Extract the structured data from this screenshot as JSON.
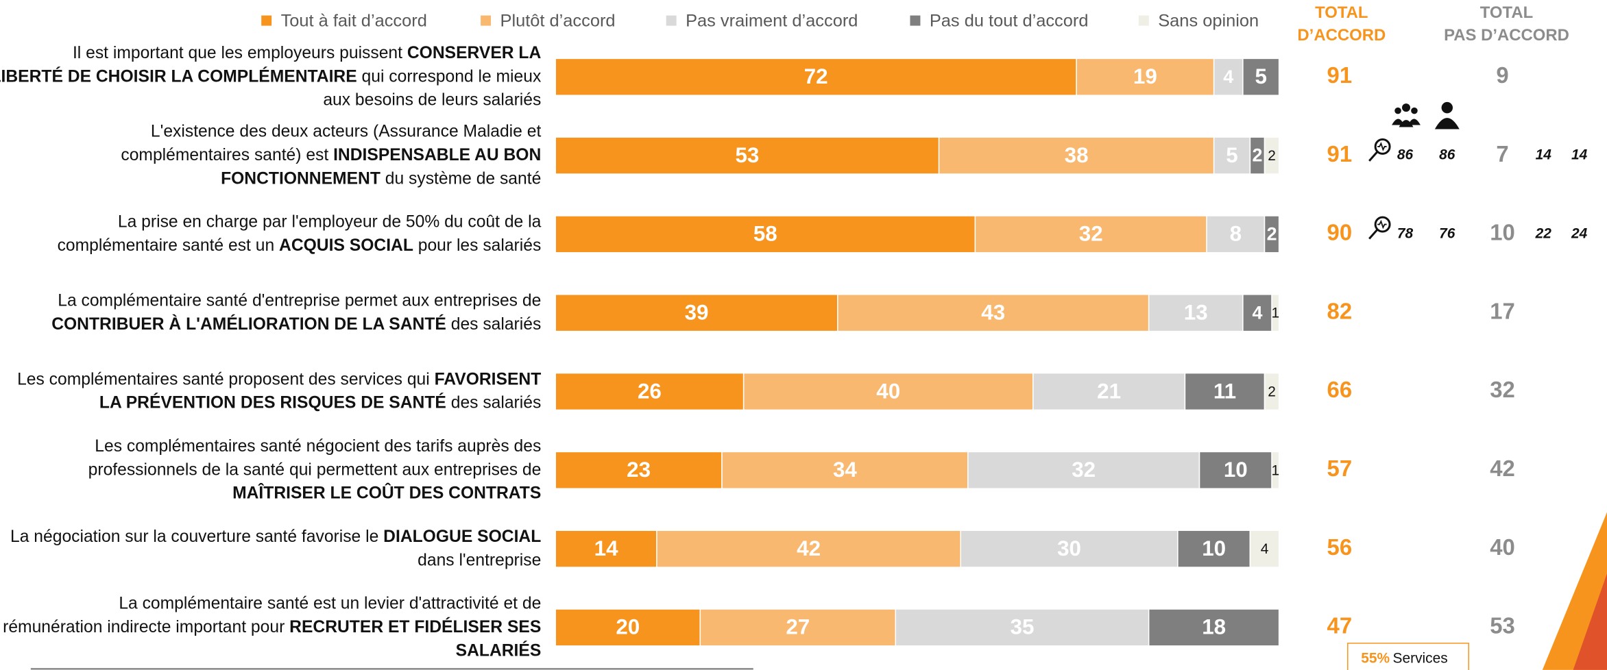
{
  "chart_data": {
    "type": "stacked-barh",
    "series": [
      {
        "name": "Tout à fait d’accord",
        "color": "#f7941d",
        "label_color": "#ffffff",
        "values": [
          72,
          53,
          58,
          39,
          26,
          23,
          14,
          20
        ]
      },
      {
        "name": "Plutôt d’accord",
        "color": "#f9b870",
        "label_color": "#ffffff",
        "values": [
          19,
          38,
          32,
          43,
          40,
          34,
          42,
          27
        ]
      },
      {
        "name": "Pas vraiment d’accord",
        "color": "#d9d9d9",
        "label_color": "#ffffff",
        "values": [
          4,
          5,
          8,
          13,
          21,
          32,
          30,
          35
        ]
      },
      {
        "name": "Pas du tout d’accord",
        "color": "#7f7f7f",
        "label_color": "#ffffff",
        "values": [
          5,
          2,
          2,
          4,
          11,
          10,
          10,
          18
        ]
      },
      {
        "name": "Sans opinion",
        "color": "#efefe6",
        "label_color": "#111111",
        "values": [
          null,
          2,
          null,
          1,
          2,
          1,
          4,
          null
        ]
      }
    ],
    "categories": [
      [
        [
          {
            "text": "Il est important que les employeurs puissent ",
            "bold": false
          },
          {
            "text": "CONSERVER LA",
            "bold": true
          }
        ],
        [
          {
            "text": "LIBERTÉ DE CHOISIR LA COMPLÉMENTAIRE",
            "bold": true
          },
          {
            "text": " qui correspond le mieux",
            "bold": false
          }
        ],
        [
          {
            "text": "aux besoins de leurs salariés",
            "bold": false
          }
        ]
      ],
      [
        [
          {
            "text": "L'existence des deux acteurs (Assurance Maladie et",
            "bold": false
          }
        ],
        [
          {
            "text": "complémentaires santé) est ",
            "bold": false
          },
          {
            "text": "INDISPENSABLE AU BON",
            "bold": true
          }
        ],
        [
          {
            "text": "FONCTIONNEMENT",
            "bold": true
          },
          {
            "text": " du système de santé",
            "bold": false
          }
        ]
      ],
      [
        [
          {
            "text": "La prise en charge par l'employeur de 50% du coût de la",
            "bold": false
          }
        ],
        [
          {
            "text": "complémentaire santé est un ",
            "bold": false
          },
          {
            "text": "ACQUIS SOCIAL",
            "bold": true
          },
          {
            "text": " pour les salariés",
            "bold": false
          }
        ]
      ],
      [
        [
          {
            "text": "La complémentaire santé d'entreprise permet aux entreprises de",
            "bold": false
          }
        ],
        [
          {
            "text": "CONTRIBUER À L'AMÉLIORATION DE LA SANTÉ",
            "bold": true
          },
          {
            "text": " des salariés",
            "bold": false
          }
        ]
      ],
      [
        [
          {
            "text": "Les complémentaires santé proposent des services qui ",
            "bold": false
          },
          {
            "text": "FAVORISENT",
            "bold": true
          }
        ],
        [
          {
            "text": "LA PRÉVENTION DES RISQUES DE SANTÉ",
            "bold": true
          },
          {
            "text": " des salariés",
            "bold": false
          }
        ]
      ],
      [
        [
          {
            "text": "Les complémentaires santé négocient des tarifs auprès des",
            "bold": false
          }
        ],
        [
          {
            "text": "professionnels de la santé qui permettent aux entreprises de",
            "bold": false
          }
        ],
        [
          {
            "text": "MAÎTRISER LE COÛT DES CONTRATS",
            "bold": true
          }
        ]
      ],
      [
        [
          {
            "text": "La négociation sur la couverture santé favorise le ",
            "bold": false
          },
          {
            "text": "DIALOGUE SOCIAL",
            "bold": true
          }
        ],
        [
          {
            "text": "dans l'entreprise",
            "bold": false
          }
        ]
      ],
      [
        [
          {
            "text": "La complémentaire santé est un levier d'attractivité et de",
            "bold": false
          }
        ],
        [
          {
            "text": "rémunération indirecte important pour ",
            "bold": false
          },
          {
            "text": "RECRUTER ET FIDÉLISER SES",
            "bold": true
          }
        ],
        [
          {
            "text": "SALARIÉS",
            "bold": true
          }
        ]
      ]
    ],
    "xlim": [
      0,
      100
    ],
    "total_accord_header": [
      "TOTAL",
      "D’ACCORD"
    ],
    "total_accord_color": "#f7941d",
    "total_accord": [
      91,
      91,
      90,
      82,
      66,
      57,
      56,
      47
    ],
    "total_pas_header": [
      "TOTAL",
      "PAS D’ACCORD"
    ],
    "total_pas_color": "#8c8c8c",
    "total_pas": [
      9,
      7,
      10,
      17,
      32,
      42,
      40,
      53
    ],
    "subgroup_accord": [
      null,
      [
        86,
        86
      ],
      [
        78,
        76
      ],
      null,
      null,
      null,
      null,
      null
    ],
    "subgroup_pas": [
      null,
      [
        14,
        14
      ],
      [
        22,
        24
      ],
      null,
      null,
      null,
      null,
      null
    ],
    "annotation": {
      "value": 55,
      "label": "55%",
      "text": "Services"
    }
  }
}
